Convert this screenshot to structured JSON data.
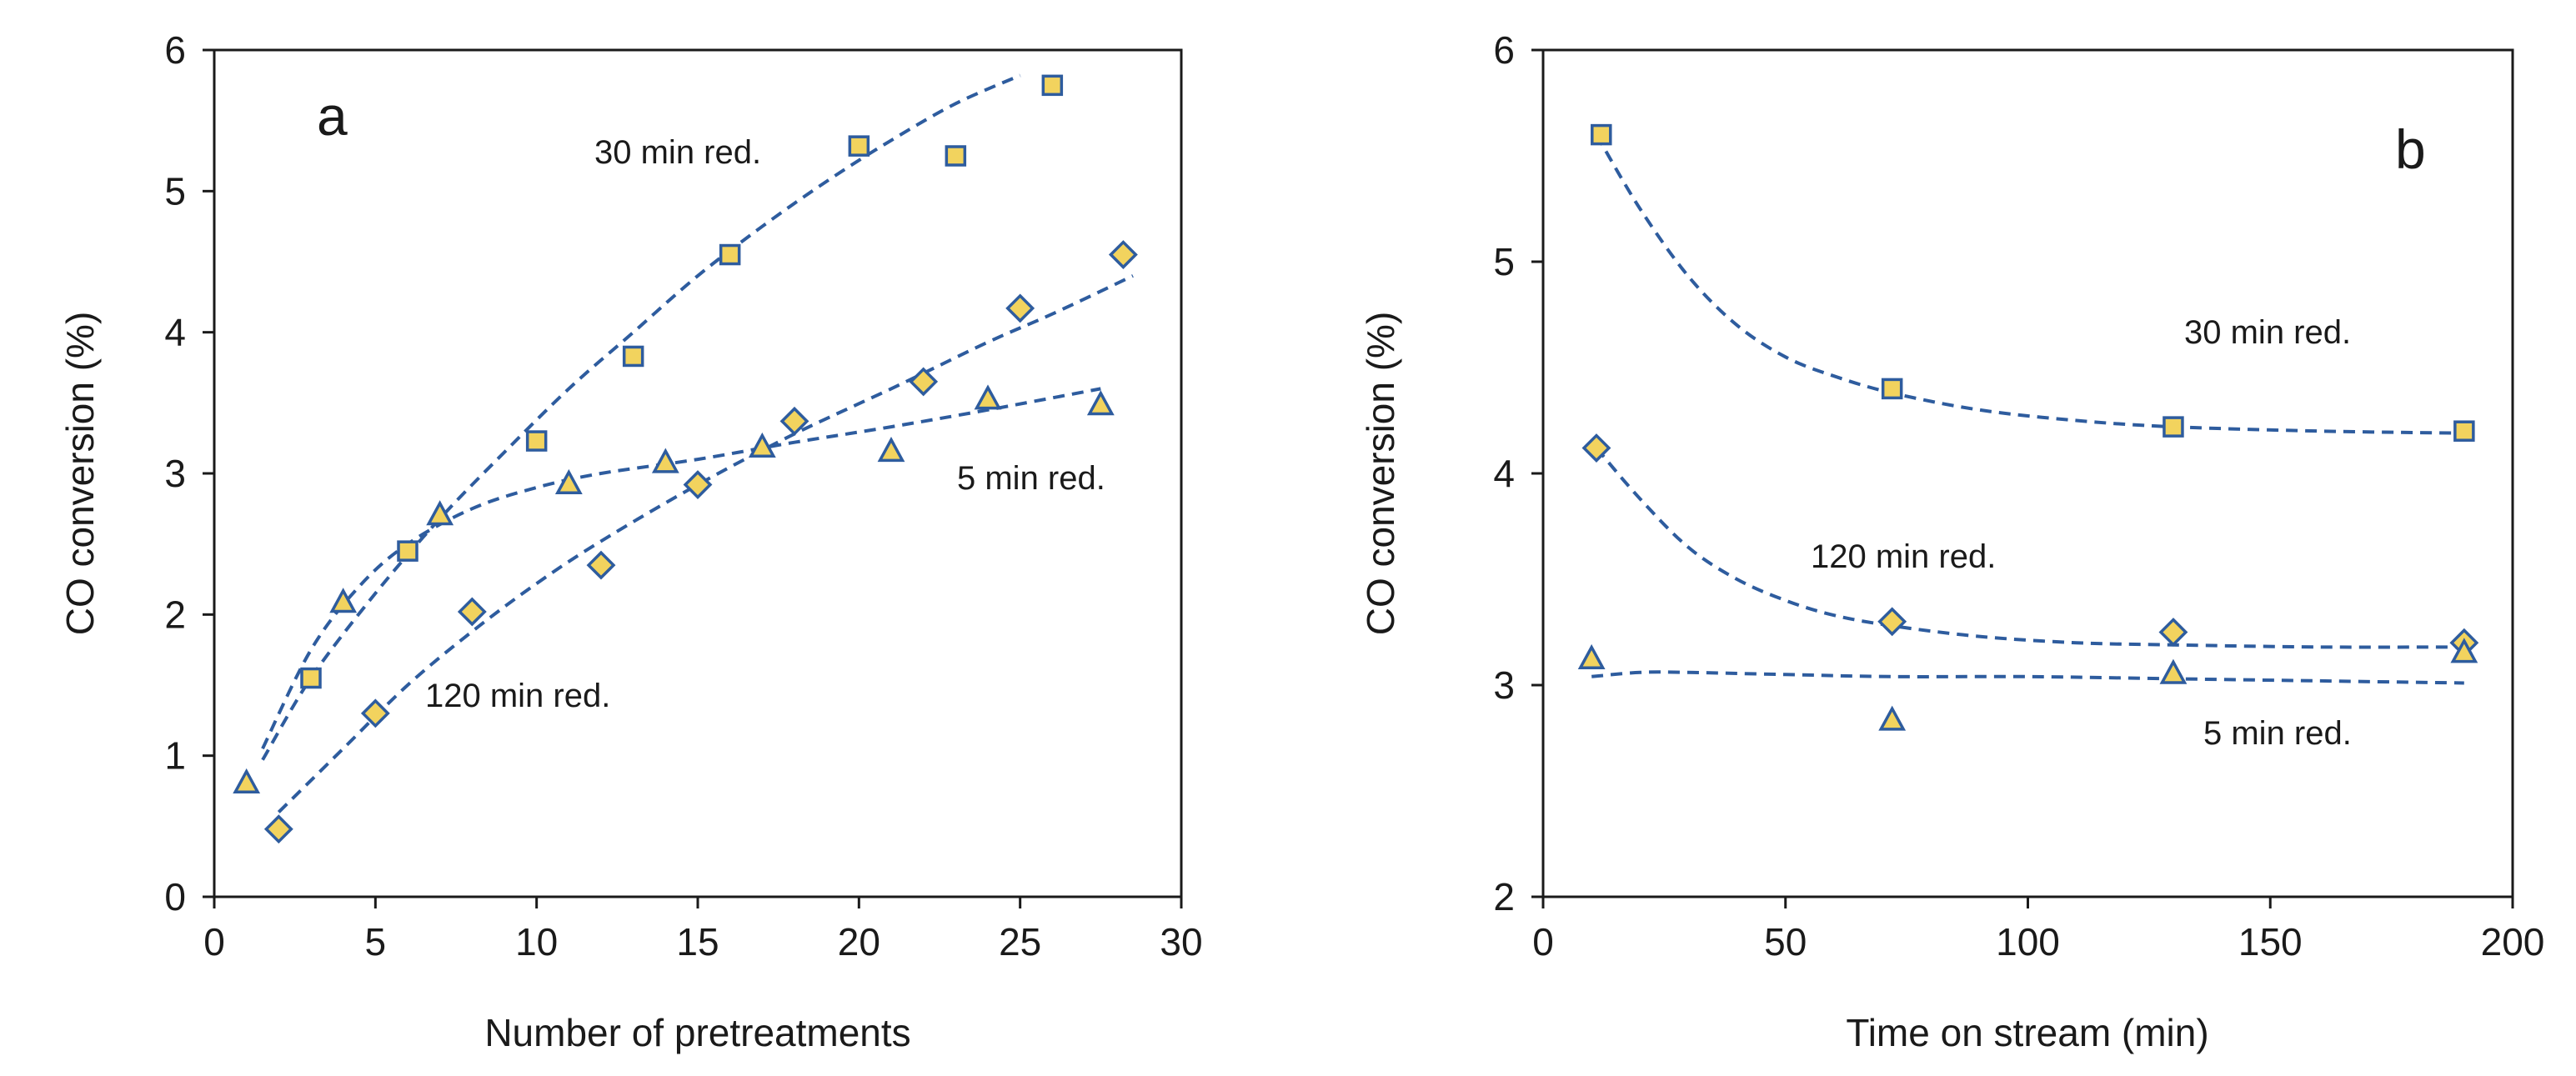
{
  "chart_data": [
    {
      "type": "scatter",
      "panel_label": "a",
      "xlabel": "Number of pretreatments",
      "ylabel": "CO conversion (%)",
      "xlim": [
        0,
        30
      ],
      "ylim": [
        0,
        6
      ],
      "xticks": [
        0,
        5,
        10,
        15,
        20,
        25,
        30
      ],
      "yticks": [
        0,
        1,
        2,
        3,
        4,
        5,
        6
      ],
      "grid": false,
      "series": [
        {
          "name": "30 min red.",
          "marker": "square",
          "x": [
            3,
            6,
            10,
            13,
            16,
            20,
            23,
            26
          ],
          "y": [
            1.55,
            2.45,
            3.23,
            3.83,
            4.55,
            5.32,
            5.25,
            5.75
          ],
          "trend_x": [
            1.5,
            3,
            5,
            7,
            9,
            11,
            13,
            15,
            17,
            19,
            21,
            23,
            25
          ],
          "trend_y": [
            0.97,
            1.55,
            2.15,
            2.68,
            3.15,
            3.6,
            4.0,
            4.4,
            4.75,
            5.07,
            5.36,
            5.62,
            5.82
          ]
        },
        {
          "name": "5 min red.",
          "marker": "triangle",
          "x": [
            1,
            4,
            7,
            11,
            14,
            17,
            21,
            24,
            27.5
          ],
          "y": [
            0.8,
            2.08,
            2.7,
            2.92,
            3.07,
            3.18,
            3.15,
            3.52,
            3.48
          ],
          "trend_x": [
            1.5,
            3,
            4.5,
            6,
            8,
            10,
            12,
            15,
            18,
            21,
            24,
            27.5
          ],
          "trend_y": [
            1.05,
            1.75,
            2.2,
            2.5,
            2.75,
            2.9,
            3.0,
            3.1,
            3.22,
            3.33,
            3.45,
            3.6
          ]
        },
        {
          "name": "120 min red.",
          "marker": "diamond",
          "x": [
            2,
            5,
            8,
            12,
            15,
            18,
            22,
            25,
            28.2
          ],
          "y": [
            0.48,
            1.3,
            2.02,
            2.35,
            2.92,
            3.37,
            3.65,
            4.17,
            4.55
          ],
          "trend_x": [
            2,
            4,
            6,
            8,
            10,
            12,
            15,
            18,
            21,
            24,
            26,
            28.5
          ],
          "trend_y": [
            0.6,
            1.05,
            1.5,
            1.88,
            2.22,
            2.52,
            2.92,
            3.28,
            3.6,
            3.93,
            4.13,
            4.4
          ]
        }
      ],
      "annotations": [
        "30 min red.",
        "5 min red.",
        "120 min red."
      ]
    },
    {
      "type": "scatter",
      "panel_label": "b",
      "xlabel": "Time on stream (min)",
      "ylabel": "CO conversion (%)",
      "xlim": [
        0,
        200
      ],
      "ylim": [
        2,
        6
      ],
      "xticks": [
        0,
        50,
        100,
        150,
        200
      ],
      "yticks": [
        2,
        3,
        4,
        5,
        6
      ],
      "grid": false,
      "series": [
        {
          "name": "30 min red.",
          "marker": "square",
          "x": [
            12,
            72,
            130,
            190
          ],
          "y": [
            5.6,
            4.4,
            4.22,
            4.2
          ],
          "trend_x": [
            11,
            20,
            30,
            40,
            50,
            60,
            72,
            90,
            110,
            130,
            160,
            190
          ],
          "trend_y": [
            5.6,
            5.25,
            4.93,
            4.7,
            4.55,
            4.46,
            4.38,
            4.3,
            4.25,
            4.22,
            4.2,
            4.19
          ]
        },
        {
          "name": "120 min red.",
          "marker": "diamond",
          "x": [
            11,
            72,
            130,
            190
          ],
          "y": [
            4.12,
            3.3,
            3.25,
            3.2
          ],
          "trend_x": [
            11,
            20,
            30,
            40,
            50,
            60,
            72,
            90,
            110,
            130,
            160,
            190
          ],
          "trend_y": [
            4.12,
            3.88,
            3.65,
            3.5,
            3.4,
            3.33,
            3.28,
            3.23,
            3.2,
            3.19,
            3.18,
            3.18
          ]
        },
        {
          "name": "5 min red.",
          "marker": "triangle",
          "x": [
            10,
            72,
            130,
            190
          ],
          "y": [
            3.12,
            2.83,
            3.05,
            3.15
          ],
          "trend_x": [
            10,
            20,
            30,
            50,
            72,
            100,
            130,
            160,
            190
          ],
          "trend_y": [
            3.04,
            3.06,
            3.06,
            3.05,
            3.04,
            3.04,
            3.03,
            3.02,
            3.01
          ]
        }
      ],
      "annotations": [
        "30 min red.",
        "120 min red.",
        "5 min red."
      ]
    }
  ],
  "colors": {
    "marker_fill": "#f2d35e",
    "marker_edge": "#2e5c9e",
    "line": "#2e5c9e",
    "axis": "#1a1a1a"
  }
}
